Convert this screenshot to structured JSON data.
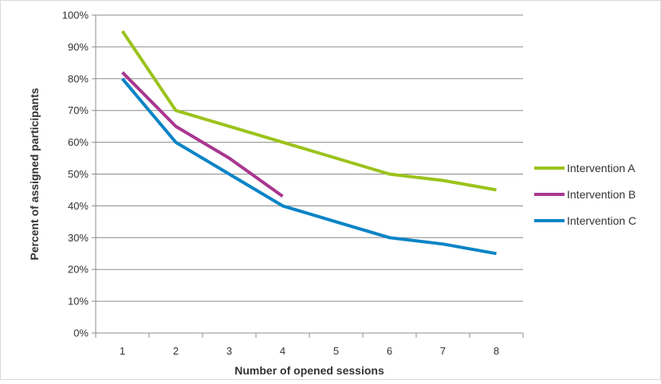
{
  "chart_data": {
    "type": "line",
    "title": "",
    "xlabel": "Number of opened sessions",
    "ylabel": "Percent of assigned participants",
    "categories": [
      "1",
      "2",
      "3",
      "4",
      "5",
      "6",
      "7",
      "8"
    ],
    "ylim": [
      0,
      100
    ],
    "yticks": [
      "0%",
      "10%",
      "20%",
      "30%",
      "40%",
      "50%",
      "60%",
      "70%",
      "80%",
      "90%",
      "100%"
    ],
    "grid": "horizontal",
    "legend_position": "right",
    "series": [
      {
        "name": "Intervention A",
        "color": "#9BC31C",
        "values": [
          95,
          70,
          65,
          60,
          55,
          50,
          48,
          45
        ]
      },
      {
        "name": "Intervention B",
        "color": "#A8378F",
        "values": [
          82,
          65,
          55,
          43,
          null,
          null,
          null,
          null
        ]
      },
      {
        "name": "Intervention C",
        "color": "#0A84C6",
        "values": [
          80,
          60,
          50,
          40,
          35,
          30,
          28,
          25
        ]
      }
    ]
  }
}
